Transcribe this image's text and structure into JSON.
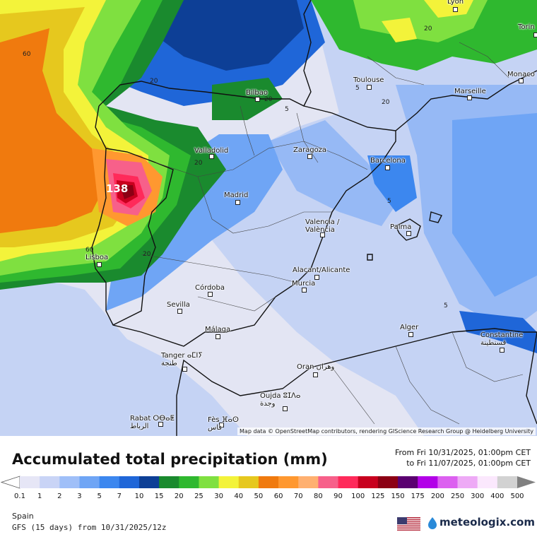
{
  "map": {
    "attribution": "Map data © OpenStreetMap contributors, rendering GIScience Research Group @ Heidelberg University",
    "max_value_label": "138",
    "contours": [
      "60",
      "20",
      "5",
      "20",
      "20",
      "5",
      "5",
      "20",
      "60",
      "20",
      "5",
      "20"
    ],
    "cities": [
      {
        "name": "Lyon"
      },
      {
        "name": "Torin"
      },
      {
        "name": "Monaco"
      },
      {
        "name": "Toulouse"
      },
      {
        "name": "Marseille"
      },
      {
        "name": "Bilbao"
      },
      {
        "name": "Valladolid"
      },
      {
        "name": "Zaragoza"
      },
      {
        "name": "Barcelona"
      },
      {
        "name": "Madrid"
      },
      {
        "name": "Valencia /\nValència"
      },
      {
        "name": "Palma"
      },
      {
        "name": "Lisboa"
      },
      {
        "name": "Alacant/Alicante"
      },
      {
        "name": "Murcia"
      },
      {
        "name": "Córdoba"
      },
      {
        "name": "Sevilla"
      },
      {
        "name": "Málaga"
      },
      {
        "name": "Alger"
      },
      {
        "name": "Constantine\nقسنطينة"
      },
      {
        "name": "Tanger ⴰⵎⵏⵢ\nطنجة"
      },
      {
        "name": "Oran وهران"
      },
      {
        "name": "Oujda ⵓⵊⴷⴰ\nوجدة"
      },
      {
        "name": "Rabat ⵔⴱⴰⵟ\nالرباط"
      },
      {
        "name": "Fès ⴼⴰⵙ\nفاس"
      }
    ]
  },
  "header": {
    "title": "Accumulated total precipitation (mm)",
    "period_from": "From Fri 10/31/2025, 01:00pm CET",
    "period_to": "to Fri 11/07/2025, 01:00pm CET"
  },
  "legend": {
    "ticks": [
      "0.1",
      "1",
      "2",
      "3",
      "5",
      "7",
      "10",
      "15",
      "20",
      "25",
      "30",
      "40",
      "50",
      "60",
      "70",
      "80",
      "90",
      "100",
      "125",
      "150",
      "175",
      "200",
      "250",
      "300",
      "400",
      "500"
    ],
    "colors": [
      "#e6e6f6",
      "#c9d4f6",
      "#9fbff8",
      "#6fa5f5",
      "#3c87ef",
      "#1f66d8",
      "#0d3f96",
      "#1a8a2e",
      "#2fb82f",
      "#7fe040",
      "#f3f33a",
      "#e6c81e",
      "#f07a0e",
      "#ff9830",
      "#ffb070",
      "#f7608a",
      "#ff2a5a",
      "#c8001e",
      "#8c0014",
      "#5a0070",
      "#b200e8",
      "#dc60f0",
      "#eeaaf6",
      "#fbe8fd",
      "#d2d2d2"
    ]
  },
  "footer": {
    "region": "Spain",
    "model": "GFS (15 days) from 10/31/2025/12z",
    "brand": "meteologix.com"
  }
}
